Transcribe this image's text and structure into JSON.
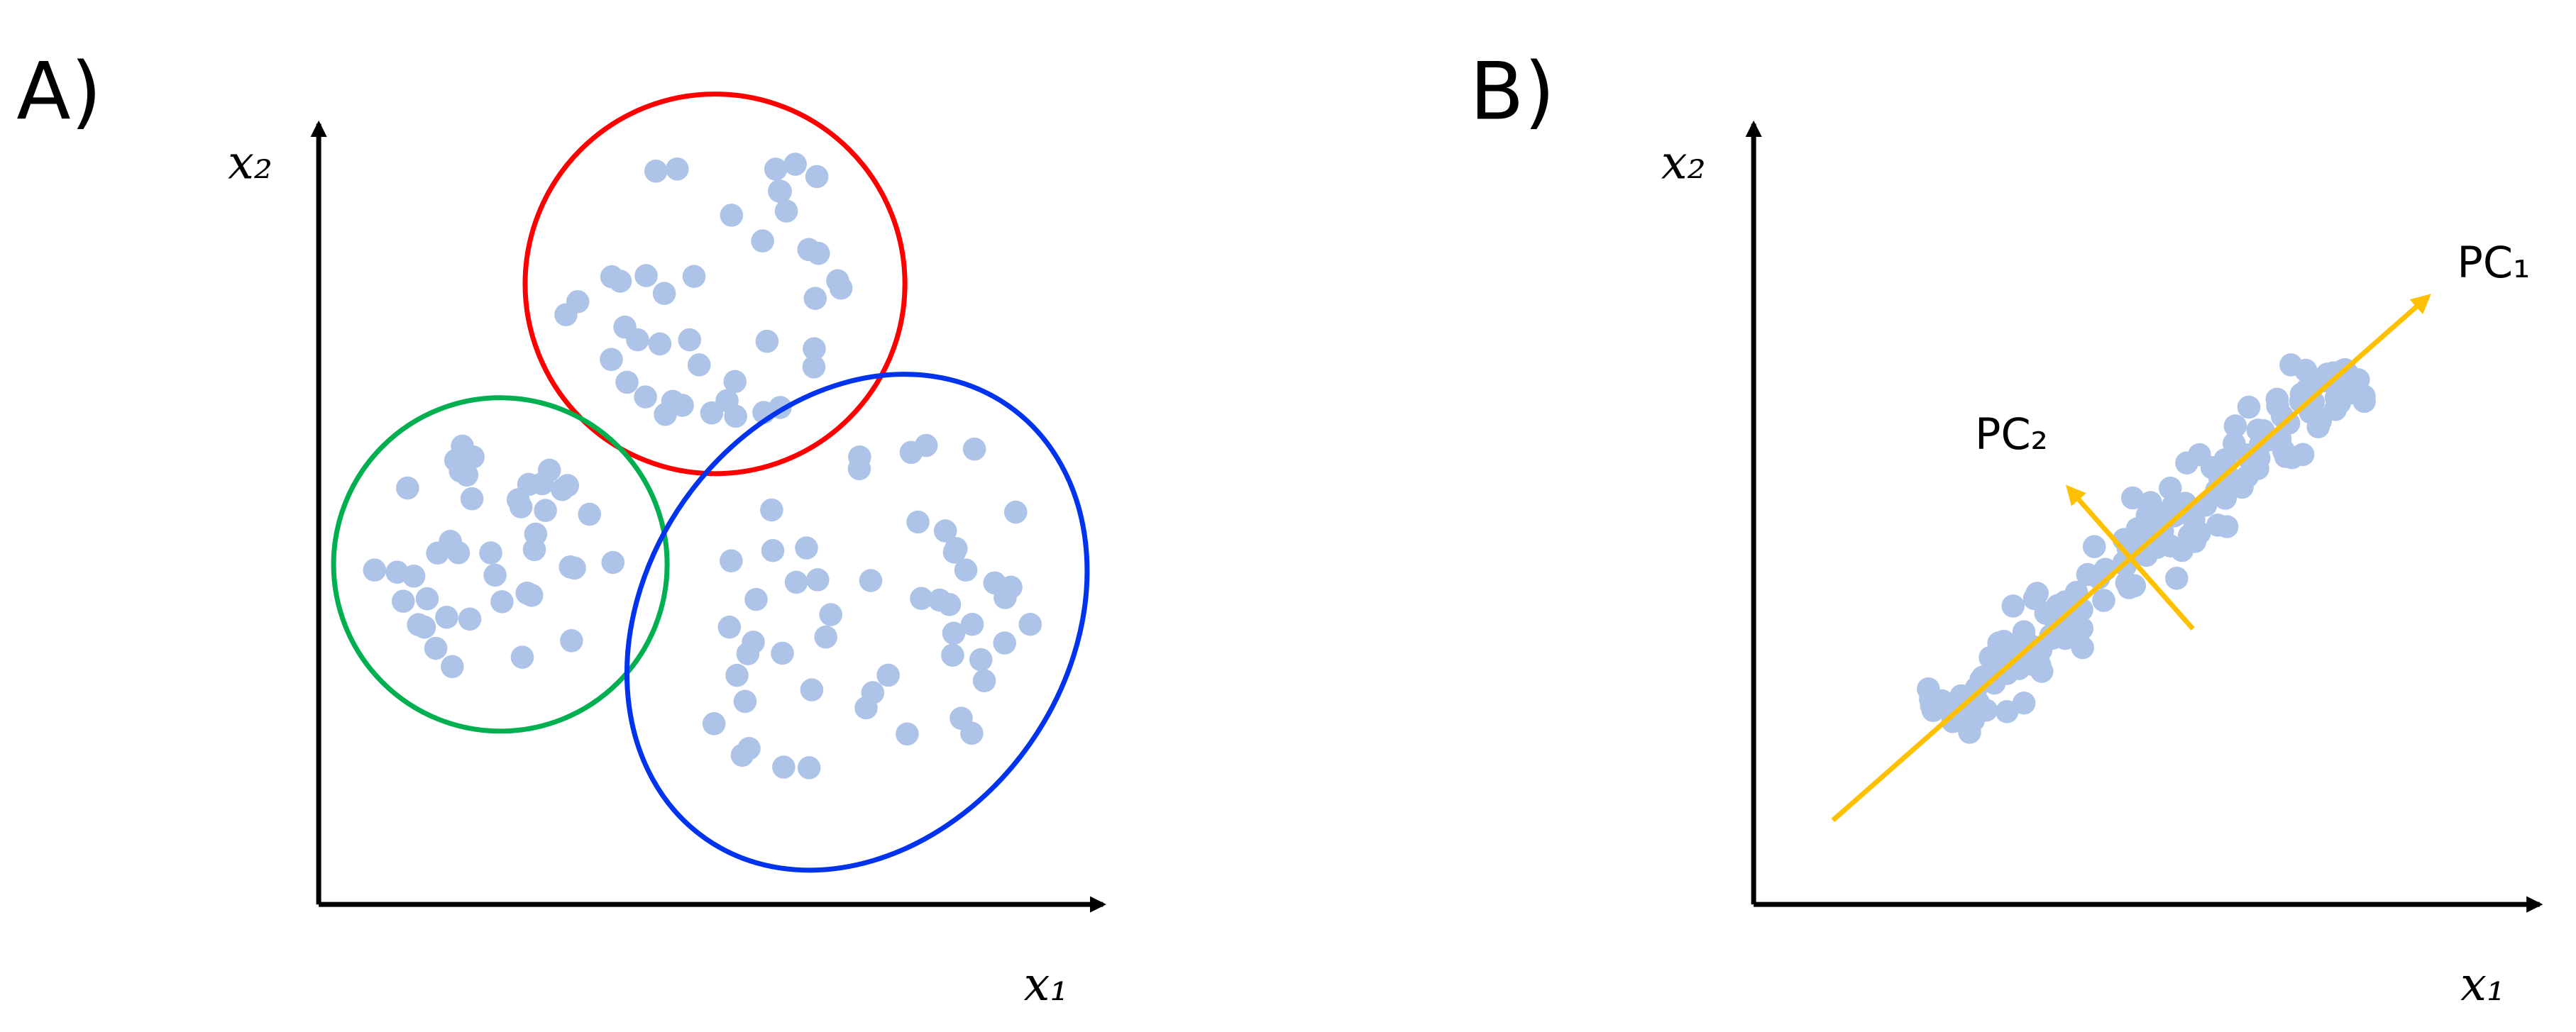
{
  "panels": [
    {
      "label": "A)",
      "x_axis": "x₁",
      "y_axis": "x₂"
    },
    {
      "label": "B)",
      "x_axis": "x₁",
      "y_axis": "x₂",
      "pc1": "PC₁",
      "pc2": "PC₂"
    }
  ]
}
